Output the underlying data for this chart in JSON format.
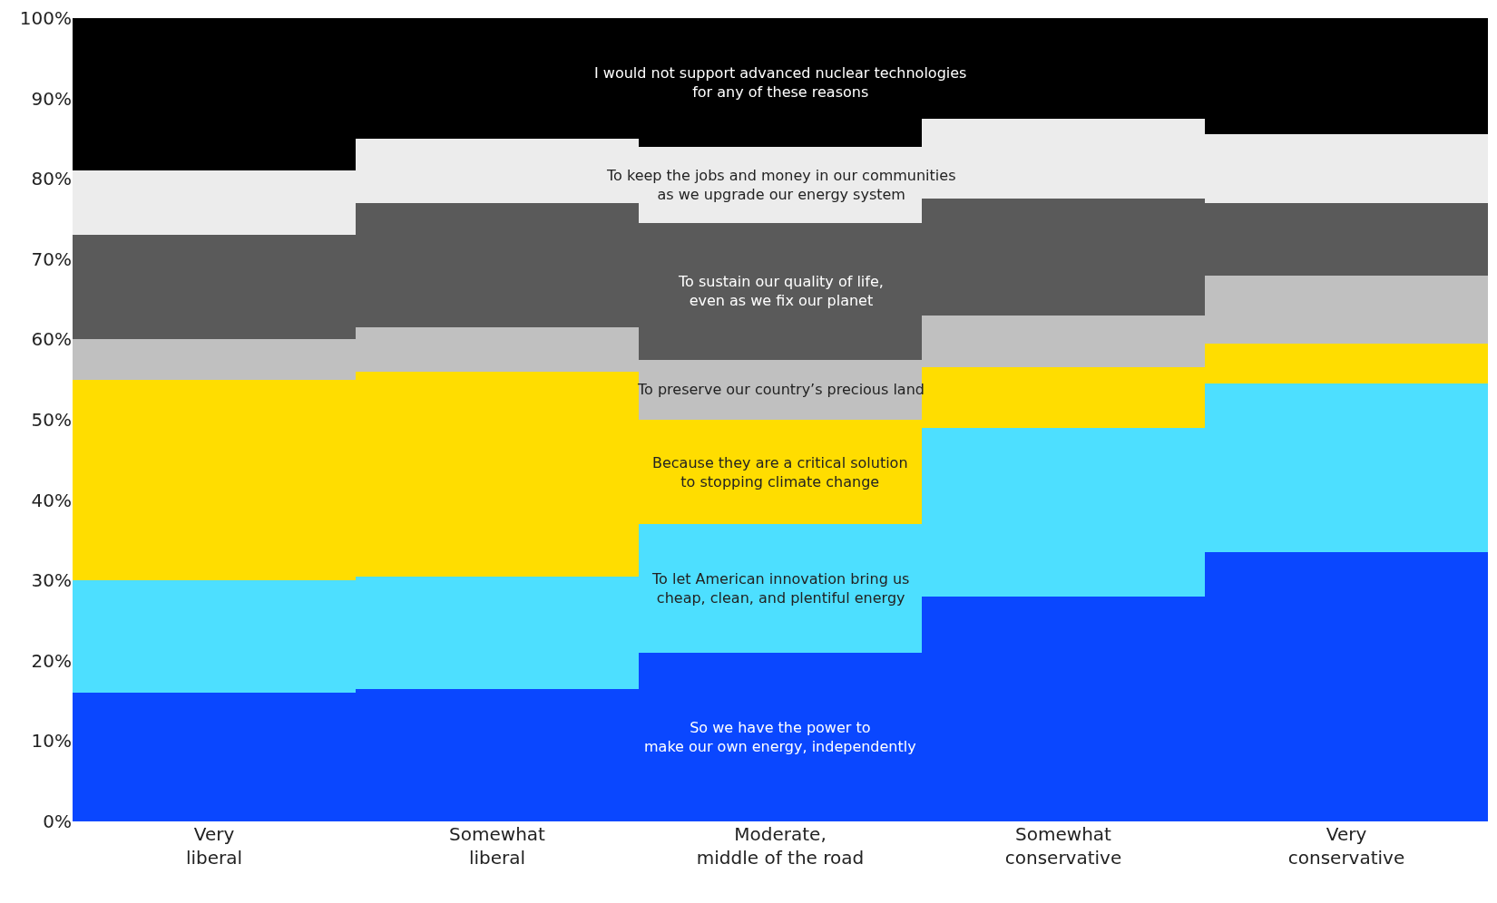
{
  "chart_data": {
    "type": "bar",
    "stacked": true,
    "categories": [
      "Very\nliberal",
      "Somewhat\nliberal",
      "Moderate,\nmiddle of the road",
      "Somewhat\nconservative",
      "Very\nconservative"
    ],
    "series": [
      {
        "name": "So we have the power to\nmake our own energy, independently",
        "color": "#0a47ff",
        "values": [
          16,
          16.5,
          21,
          28,
          33.5
        ]
      },
      {
        "name": "To let American innovation bring us\ncheap, clean, and plentiful energy",
        "color": "#4ddfff",
        "values": [
          14,
          14,
          16,
          21,
          21
        ]
      },
      {
        "name": "Because they are a critical solution\nto stopping climate change",
        "color": "#ffdd00",
        "values": [
          25,
          25.5,
          13,
          7.5,
          5
        ]
      },
      {
        "name": "To preserve our country’s precious land",
        "color": "#c0c0c0",
        "values": [
          5,
          5.5,
          7.5,
          6.5,
          8.5
        ]
      },
      {
        "name": "To sustain our quality of life,\neven as we fix our planet",
        "color": "#5a5a5a",
        "values": [
          13,
          15.5,
          17,
          14.5,
          9
        ]
      },
      {
        "name": "To keep the jobs and money in our communities\nas we upgrade our energy system",
        "color": "#ececec",
        "values": [
          8,
          8,
          9.5,
          10,
          8.5
        ]
      },
      {
        "name": "I would not support advanced nuclear technologies\nfor any of these reasons",
        "color": "#000000",
        "values": [
          19,
          15,
          16,
          12.5,
          14.5
        ]
      }
    ],
    "ylim": [
      0,
      100
    ],
    "yticks": [
      {
        "value": 0,
        "label": "0%"
      },
      {
        "value": 10,
        "label": "10%"
      },
      {
        "value": 20,
        "label": "20%"
      },
      {
        "value": 30,
        "label": "30%"
      },
      {
        "value": 40,
        "label": "40%"
      },
      {
        "value": 50,
        "label": "50%"
      },
      {
        "value": 60,
        "label": "60%"
      },
      {
        "value": 70,
        "label": "70%"
      },
      {
        "value": 80,
        "label": "80%"
      },
      {
        "value": 90,
        "label": "90%"
      },
      {
        "value": 100,
        "label": "100%"
      }
    ],
    "legend": false
  }
}
